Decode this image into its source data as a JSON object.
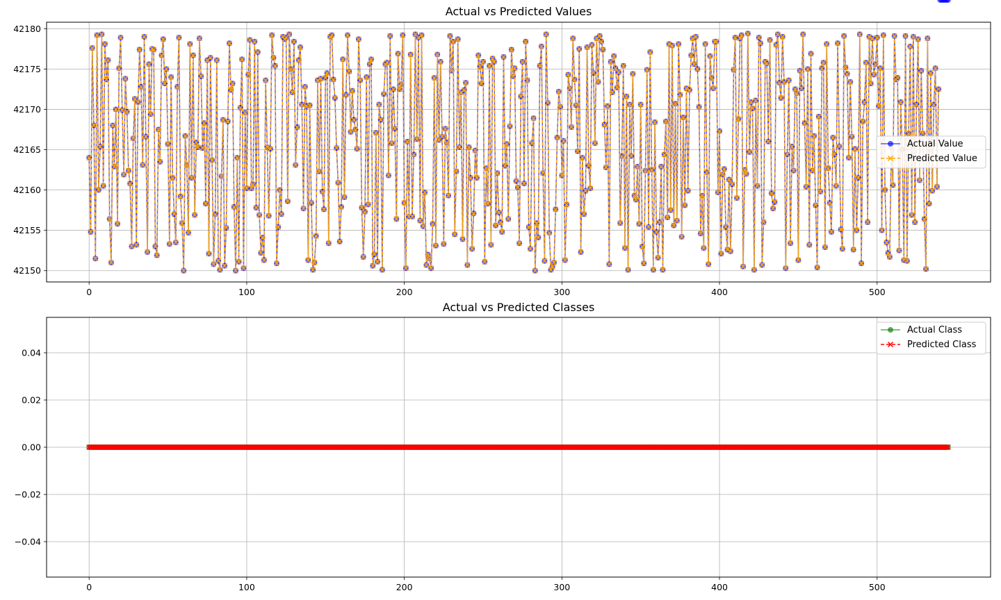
{
  "chart_data": [
    {
      "type": "line",
      "title": "Actual vs Predicted Values",
      "xlabel": "",
      "ylabel": "",
      "xlim": [
        -27,
        572
      ],
      "ylim": [
        42148.6,
        42180.8
      ],
      "xticks": [
        0,
        100,
        200,
        300,
        400,
        500
      ],
      "yticks": [
        42150,
        42155,
        42160,
        42165,
        42170,
        42175,
        42180
      ],
      "grid": true,
      "legend_position": "center-right",
      "series": [
        {
          "name": "Actual Value",
          "color": "#0000ff",
          "opacity": 0.65,
          "marker": "circle",
          "linestyle": "solid"
        },
        {
          "name": "Predicted Value",
          "color": "#ffa500",
          "opacity": 1,
          "marker": "x",
          "linestyle": "dashed"
        }
      ],
      "n_points": 546,
      "values": [
        42164,
        42154.8,
        42177.6,
        42168,
        42151.5,
        42179.2,
        42160,
        42165.4,
        42179.3,
        42160.5,
        42178.1,
        42173.7,
        42176.1,
        42156.4,
        42151,
        42168,
        42162.9,
        42170,
        42155.8,
        42175.1,
        42178.9,
        42169.9,
        42161.9,
        42173.8,
        42169.7,
        42162.4,
        42160.8,
        42153,
        42166.4,
        42171.3,
        42153.2,
        42170.9,
        42177.4,
        42172.8,
        42163.1,
        42179,
        42166.6,
        42152.3,
        42175.6,
        42169.4,
        42177.5,
        42177.4,
        42153,
        42151.9,
        42167.5,
        42163.5,
        42176.7,
        42178.7,
        42173.2,
        42175,
        42165.7,
        42153.3,
        42174,
        42161.5,
        42157,
        42153.5,
        42172.8,
        42178.9,
        42159.2,
        42155.9,
        42150,
        42166.7,
        42163.1,
        42154.7,
        42178.1,
        42161.5,
        42176.7,
        42156.9,
        42165.9,
        42165.3,
        42178.8,
        42174.1,
        42165.2,
        42168.3,
        42158.3,
        42176.1,
        42152.1,
        42176.4,
        42163.7,
        42150.8,
        42157,
        42176.1,
        42151.2,
        42150.1,
        42161.7,
        42168.7,
        42150.6,
        42155.3,
        42168.5,
        42178.2,
        42172.4,
        42173.2,
        42157.9,
        42150,
        42164,
        42151.1,
        42170.2,
        42176.2,
        42150.3,
        42169.6,
        42160.2,
        42174.3,
        42178.6,
        42160.2,
        42160.7,
        42178.4,
        42157.8,
        42177.1,
        42156.9,
        42152.2,
        42154.1,
        42151.3,
        42173.6,
        42165.3,
        42156.8,
        42165.1,
        42179.2,
        42176.4,
        42175.4,
        42150.9,
        42155.4,
        42160,
        42157,
        42179,
        42178.7,
        42178.9,
        42158.6,
        42179.3,
        42175,
        42172.1,
        42178.4,
        42163.1,
        42167.8,
        42176.1,
        42177.7,
        42170.6,
        42157.7,
        42172.8,
        42170.4,
        42151.3,
        42170.5,
        42158.4,
        42150.1,
        42151,
        42154.3,
        42173.6,
        42162.3,
        42173.8,
        42159.8,
        42157.6,
        42173.9,
        42174.5,
        42153.4,
        42179,
        42179.2,
        42173.7,
        42171.4,
        42165.2,
        42160.9,
        42153.6,
        42157.9,
        42176.2,
        42159.1,
        42171.8,
        42179.2,
        42174.7,
        42167.2,
        42172.3,
        42168.7,
        42167.5,
        42165.1,
        42178.7,
        42173.6,
        42157.8,
        42151.7,
        42157.3,
        42174,
        42158.2,
        42175.6,
        42176.2,
        42150.6,
        42152,
        42167.1,
        42151.1,
        42170.6,
        42168.7,
        42150.1,
        42171.9,
        42175.6,
        42175.8,
        42161.8,
        42179.1,
        42165.8,
        42172.5,
        42167.6,
        42156.4,
        42176.9,
        42172.5,
        42173.1,
        42179.2,
        42158.4,
        42150.3,
        42166,
        42156.7,
        42176.8,
        42156.7,
        42164.4,
        42179.3,
        42166.3,
        42178.9,
        42156.2,
        42179.2,
        42155.5,
        42159.7,
        42150.7,
        42152,
        42151.5,
        42150.3,
        42155.8,
        42173.9,
        42153.1,
        42176.8,
        42166.2,
        42175.9,
        42166.6,
        42153.3,
        42167.6,
        42165.9,
        42159.3,
        42179.1,
        42174.8,
        42178.4,
        42154.5,
        42162.3,
        42178.7,
        42165.3,
        42172.1,
        42153.9,
        42172.4,
        42173.3,
        42150.7,
        42165.3,
        42161.5,
        42152.7,
        42157.1,
        42164.9,
        42161.5,
        42176.7,
        42175.3,
        42173.2,
        42175.9,
        42151.1,
        42162.7,
        42158.3,
        42175.4,
        42153.2,
        42176.3,
        42175.9,
        42155.6,
        42162.1,
        42157.2,
        42156,
        42154.8,
        42176.5,
        42163,
        42165.7,
        42156.4,
        42167.9,
        42177.4,
        42174.1,
        42175.1,
        42161.1,
        42160.3,
        42153.4,
        42171.6,
        42175.9,
        42160.8,
        42178.4,
        42173.6,
        42155.4,
        42152.7,
        42165.8,
        42168.9,
        42150,
        42155.9,
        42154.1,
        42175.4,
        42177.8,
        42162.1,
        42151.2,
        42179.3,
        42170.8,
        42154.7,
        42150.1,
        42150.5,
        42151,
        42157.6,
        42166.5,
        42172.2,
        42170.3,
        42161.8,
        42166.1,
        42151.3,
        42158.2,
        42174.3,
        42172.6,
        42167.8,
        42178.8,
        42173.7,
        42170.5,
        42164.8,
        42177.5,
        42152.3,
        42164,
        42157,
        42159.9,
        42177.7,
        42163,
        42160.2,
        42178,
        42174.5,
        42165.8,
        42178.8,
        42173.4,
        42179.1,
        42178.4,
        42177.4,
        42168.1,
        42162.8,
        42170.4,
        42150.8,
        42175.9,
        42172.1,
        42176.6,
        42175.1,
        42172.7,
        42174.6,
        42155.9,
        42164.2,
        42175.4,
        42152.8,
        42171.6,
        42150.1,
        42170.6,
        42164.2,
        42174.4,
        42159.3,
        42158.8,
        42162.9,
        42155.8,
        42170.6,
        42153,
        42150.9,
        42162.4,
        42174.9,
        42155.4,
        42177.1,
        42162.5,
        42150.1,
        42168.4,
        42154.8,
        42151.6,
        42156,
        42162.9,
        42150.1,
        42164.4,
        42168.5,
        42156.6,
        42178.1,
        42157.5,
        42177.9,
        42155.6,
        42170.7,
        42156.2,
        42178.1,
        42171.8,
        42154.2,
        42169,
        42158.1,
        42172.6,
        42159.9,
        42172.4,
        42176.7,
        42178.8,
        42175.6,
        42179,
        42175,
        42170.3,
        42154.6,
        42159.3,
        42152.8,
        42178.1,
        42162.2,
        42150.8,
        42176.6,
        42173.9,
        42172.6,
        42178.4,
        42178.4,
        42159.7,
        42167.3,
        42152.1,
        42161.9,
        42162.6,
        42155.4,
        42152.6,
        42161.3,
        42152.4,
        42160.7,
        42174.9,
        42178.9,
        42159,
        42168.8,
        42178.8,
        42179.2,
        42150.5,
        42162.5,
        42162,
        42179.4,
        42164.7,
        42170.9,
        42170.1,
        42150.1,
        42171.1,
        42160.5,
        42178.9,
        42178.2,
        42150.7,
        42156,
        42175.9,
        42175.7,
        42166,
        42178.6,
        42159.6,
        42157.7,
        42158.5,
        42178,
        42179.3,
        42173.3,
        42171.4,
        42179,
        42173.4,
        42150.3,
        42164.4,
        42173.6,
        42153.4,
        42165.4,
        42162.4,
        42172.5,
        42172,
        42151.3,
        42174.8,
        42172.6,
        42179.3,
        42168.3,
        42160.4,
        42175,
        42153.2,
        42176.9,
        42162.4,
        42166.7,
        42158.1,
        42150.4,
        42169.1,
        42159.8,
        42175.1,
        42175.8,
        42152.9,
        42178.1,
        42162.7,
        42158.4,
        42154.8,
        42166.5,
        42164.4,
        42160.5,
        42178.2,
        42165.4,
        42155.1,
        42152.7,
        42179.1,
        42175.2,
        42174.4,
        42164,
        42173.4,
        42166.6,
        42152.6,
        42165.1,
        42155,
        42161.5,
        42179.3,
        42150.9,
        42168.5,
        42170.9,
        42175.8,
        42156,
        42179,
        42173.2,
        42178.8,
        42174.3,
        42175.6,
        42178.9,
        42170.4,
        42175.1,
        42155,
        42179.2,
        42160,
        42153.5,
        42152.2,
        42151.7,
        42165.3,
        42160.6,
        42179.1,
        42173.7,
        42173.9,
        42152.5,
        42170.9,
        42165,
        42151.3,
        42179.1,
        42151.2,
        42167,
        42177.8,
        42156.9,
        42179,
        42156,
        42170.6,
        42178.7,
        42161.2,
        42174.8,
        42167,
        42156.4,
        42150.2,
        42178.8,
        42158.3,
        42174.5,
        42159.9,
        42170.6,
        42175.1,
        42160.4,
        42172.5
      ]
    },
    {
      "type": "line",
      "title": "Actual vs Predicted Classes",
      "xlabel": "",
      "ylabel": "",
      "xlim": [
        -27,
        572
      ],
      "ylim": [
        -0.055,
        0.055
      ],
      "xticks": [
        0,
        100,
        200,
        300,
        400,
        500
      ],
      "yticks": [
        -0.04,
        -0.02,
        0.0,
        0.02,
        0.04
      ],
      "ytick_labels": [
        "−0.04",
        "−0.02",
        "0.00",
        "0.02",
        "0.04"
      ],
      "grid": true,
      "legend_position": "upper-right",
      "series": [
        {
          "name": "Actual Class",
          "color": "#008000",
          "opacity": 0.65,
          "marker": "circle",
          "linestyle": "solid",
          "constant": 0
        },
        {
          "name": "Predicted Class",
          "color": "#ff0000",
          "opacity": 1,
          "marker": "x",
          "linestyle": "dashed",
          "constant": 0
        }
      ],
      "n_points": 546
    }
  ]
}
